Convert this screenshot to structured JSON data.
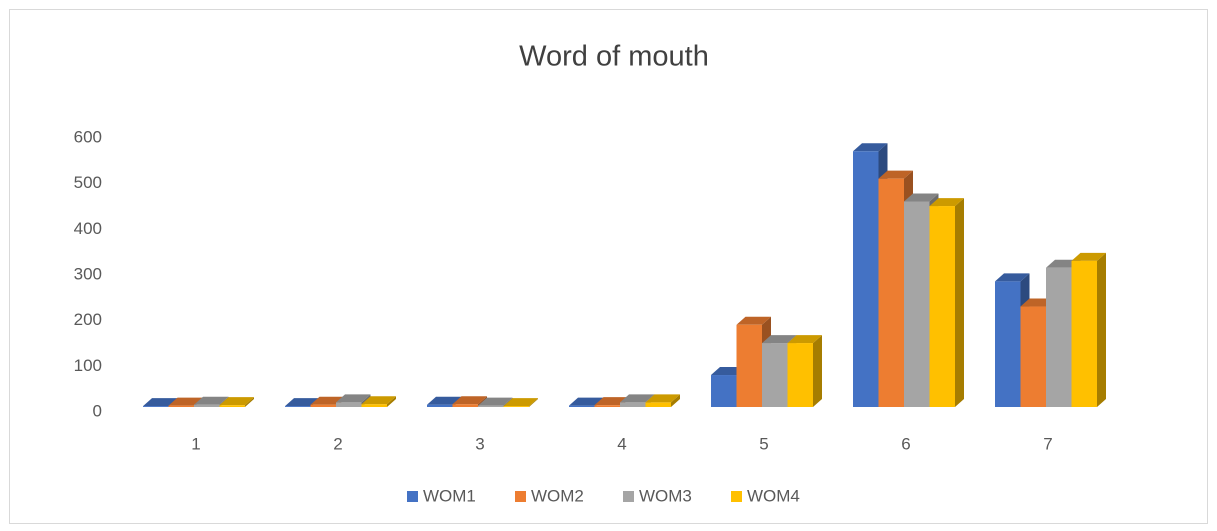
{
  "chart_data": {
    "type": "bar3d",
    "title": "Word of mouth",
    "categories": [
      "1",
      "2",
      "3",
      "4",
      "5",
      "6",
      "7"
    ],
    "series": [
      {
        "name": "WOM1",
        "color": "#4472c4",
        "values": [
          2,
          2,
          5,
          3,
          70,
          560,
          275
        ]
      },
      {
        "name": "WOM2",
        "color": "#ed7d31",
        "values": [
          3,
          5,
          6,
          4,
          180,
          500,
          220
        ]
      },
      {
        "name": "WOM3",
        "color": "#a5a5a5",
        "values": [
          5,
          10,
          3,
          10,
          140,
          450,
          305
        ]
      },
      {
        "name": "WOM4",
        "color": "#ffc000",
        "values": [
          4,
          6,
          2,
          10,
          140,
          440,
          320
        ]
      }
    ],
    "ylim": [
      0,
      600
    ],
    "yticks": [
      0,
      100,
      200,
      300,
      400,
      500,
      600
    ],
    "grid": false,
    "legend": "bottom"
  }
}
